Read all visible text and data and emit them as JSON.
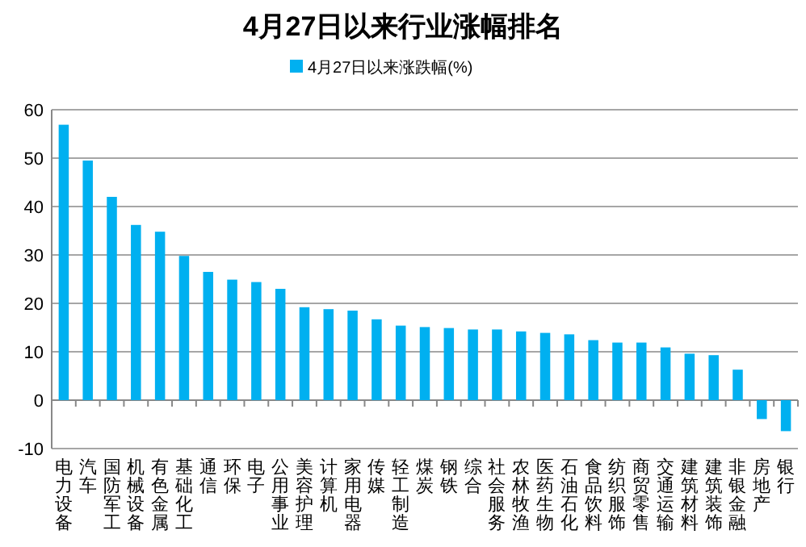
{
  "chart_data": {
    "type": "bar",
    "title": "4月27日以来行业涨幅排名",
    "categories": [
      "电力设备",
      "汽车",
      "国防军工",
      "机械设备",
      "有色金属",
      "基础化工",
      "通信",
      "环保",
      "电子",
      "公用事业",
      "美容护理",
      "计算机",
      "家用电器",
      "传媒",
      "轻工制造",
      "煤炭",
      "钢铁",
      "综合",
      "社会服务",
      "农林牧渔",
      "医药生物",
      "石油石化",
      "食品饮料",
      "纺织服饰",
      "商贸零售",
      "交通运输",
      "建筑材料",
      "建筑装饰",
      "非银金融",
      "房地产",
      "银行"
    ],
    "series": [
      {
        "name": "4月27日以来涨跌幅(%)",
        "color": "#00b0f0",
        "values": [
          56.9,
          49.5,
          42.0,
          36.2,
          34.8,
          29.8,
          26.5,
          24.9,
          24.4,
          23.0,
          19.2,
          18.8,
          18.5,
          16.7,
          15.4,
          15.1,
          14.9,
          14.6,
          14.6,
          14.2,
          13.9,
          13.6,
          12.4,
          11.9,
          11.9,
          10.9,
          9.6,
          9.3,
          6.3,
          -3.9,
          -6.4
        ]
      }
    ],
    "ylim": [
      -10,
      60
    ],
    "yticks": [
      -10,
      0,
      10,
      20,
      30,
      40,
      50,
      60
    ],
    "grid": "y",
    "legend": "top"
  }
}
